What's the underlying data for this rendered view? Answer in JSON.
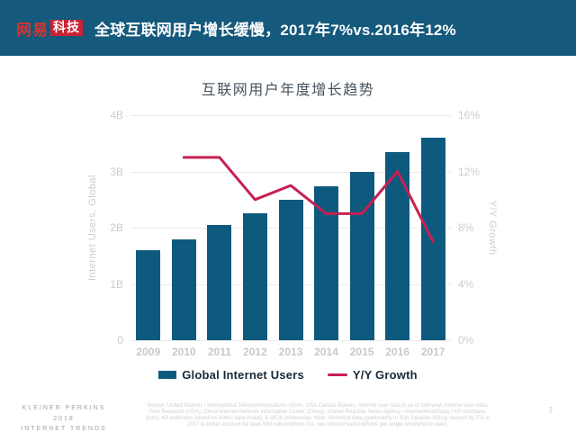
{
  "header": {
    "logo_brand": "网易",
    "logo_badge": "科技",
    "title": "全球互联网用户增长缓慢，2017年7%vs.2016年12%"
  },
  "chart_data": {
    "type": "bar",
    "combo": "bar+line",
    "title": "互联网用户年度增长趋势",
    "categories": [
      "2009",
      "2010",
      "2011",
      "2012",
      "2013",
      "2014",
      "2015",
      "2016",
      "2017"
    ],
    "series": [
      {
        "name": "Global Internet Users",
        "type": "bar",
        "axis": "left",
        "unit": "B",
        "values": [
          1.6,
          1.8,
          2.05,
          2.25,
          2.5,
          2.73,
          3.0,
          3.35,
          3.6
        ]
      },
      {
        "name": "Y/Y Growth",
        "type": "line",
        "axis": "right",
        "unit": "%",
        "values": [
          null,
          13,
          13,
          10,
          11,
          9,
          9,
          12,
          7
        ]
      }
    ],
    "left_axis": {
      "label": "Internet Users, Global",
      "range": [
        0,
        4
      ],
      "ticks_top_to_bottom": [
        "4B",
        "3B",
        "2B",
        "1B",
        "0"
      ]
    },
    "right_axis": {
      "label": "Y/Y Growth",
      "range": [
        0,
        16
      ],
      "ticks_top_to_bottom": [
        "16%",
        "12%",
        "8%",
        "4%",
        "0%"
      ]
    },
    "grid": true,
    "legend_position": "bottom"
  },
  "legend": {
    "bar_label": "Global Internet Users",
    "line_label": "Y/Y Growth"
  },
  "footer": {
    "brand_line1": "KLEINER PERKINS",
    "brand_line2": "2018",
    "brand_line3": "INTERNET TRENDS",
    "source": "Source: United Nations / International Telecommunications Union, USA Census Bureau. Internet user data is as of mid-year. Internet user data: Pew Research (USA), China Internet Network Information Center (China), Islamic Republic News Agency / InternetWorldStats / KP estimates (Iran), KP estimates based on IAMAI data (India), & APJII (Indonesia). Note: Historical data (particularly in Sub-Saharan Africa) revised by ITU in 2017 to better account for dual-SIM subscriptions (i.e. two Internet subscriptions per single smartphone user).",
    "page_number": "7"
  },
  "colors": {
    "header_bg": "#15597c",
    "logo_red": "#cb2233",
    "bar": "#0e5a7f",
    "line": "#c62051",
    "grid": "#e9ebec",
    "tick_text": "#c9cdd0",
    "chart_title_text": "#47525d",
    "legend_text": "#1b2936"
  }
}
